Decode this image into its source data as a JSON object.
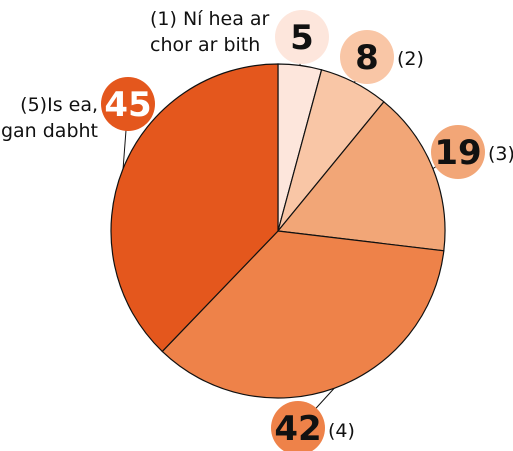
{
  "chart_data": {
    "type": "pie",
    "categories": [
      "(1) Ní hea ar chor ar bith",
      "(2)",
      "(3)",
      "(4)",
      "(5)Is ea, gan dabht"
    ],
    "values": [
      5,
      8,
      19,
      42,
      45
    ],
    "colors": [
      "#fde6dc",
      "#f9c6a6",
      "#f2a677",
      "#ee8249",
      "#e4571d"
    ],
    "value_label_colors": [
      "#111111",
      "#111111",
      "#111111",
      "#111111",
      "#ffffff"
    ]
  }
}
